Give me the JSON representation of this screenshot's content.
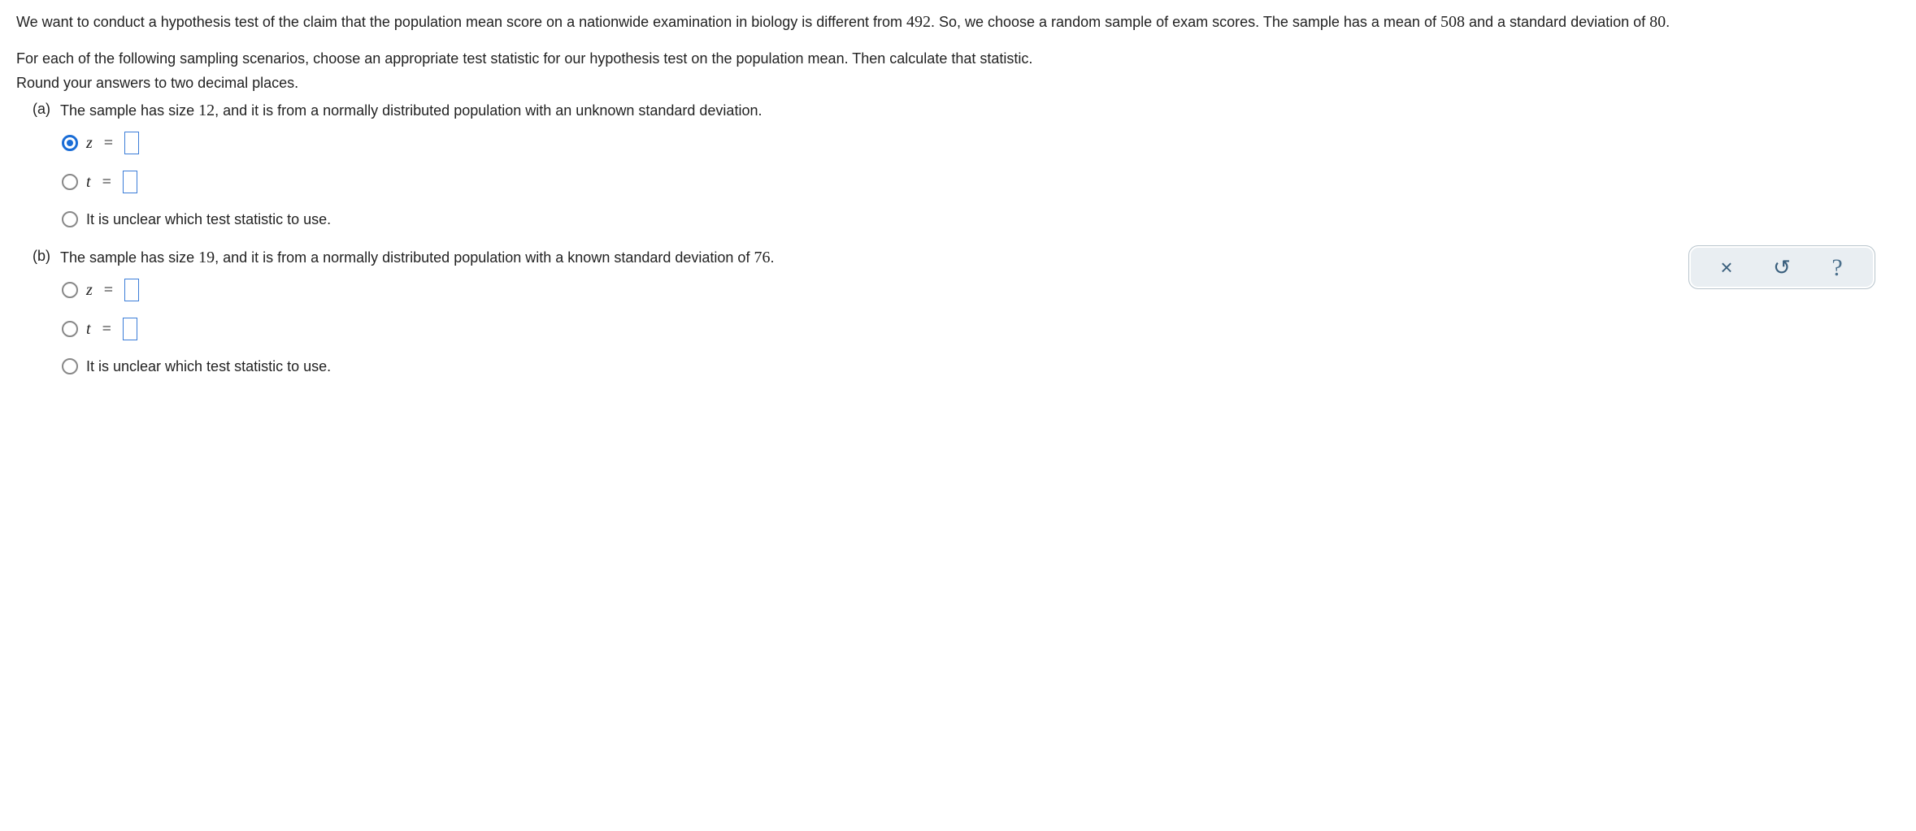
{
  "intro": {
    "line1_pre": "We want to conduct a hypothesis test of the claim that the population mean score on a nationwide examination in biology is different from ",
    "val1": "492",
    "line1_post": ". So, we choose a random sample of exam scores. The sample has a mean of ",
    "val2": "508",
    "line1_post2": " and a standard deviation of ",
    "val3": "80",
    "line1_end": "."
  },
  "instruct1": "For each of the following sampling scenarios, choose an appropriate test statistic for our hypothesis test on the population mean. Then calculate that statistic.",
  "instruct2": "Round your answers to two decimal places.",
  "part_a": {
    "label": "(a)",
    "text_pre": "The sample has size ",
    "size": "12",
    "text_post": ", and it is from a normally distributed population with an unknown standard deviation."
  },
  "part_b": {
    "label": "(b)",
    "text_pre": "The sample has size ",
    "size": "19",
    "text_post": ", and it is from a normally distributed population with a known standard deviation of ",
    "kval": "76",
    "text_end": "."
  },
  "opt": {
    "z": "z",
    "t": "t",
    "eq": "=",
    "unclear": "It is unclear which test statistic to use."
  },
  "toolbar": {
    "close": "×",
    "reset": "↺",
    "help": "?"
  }
}
